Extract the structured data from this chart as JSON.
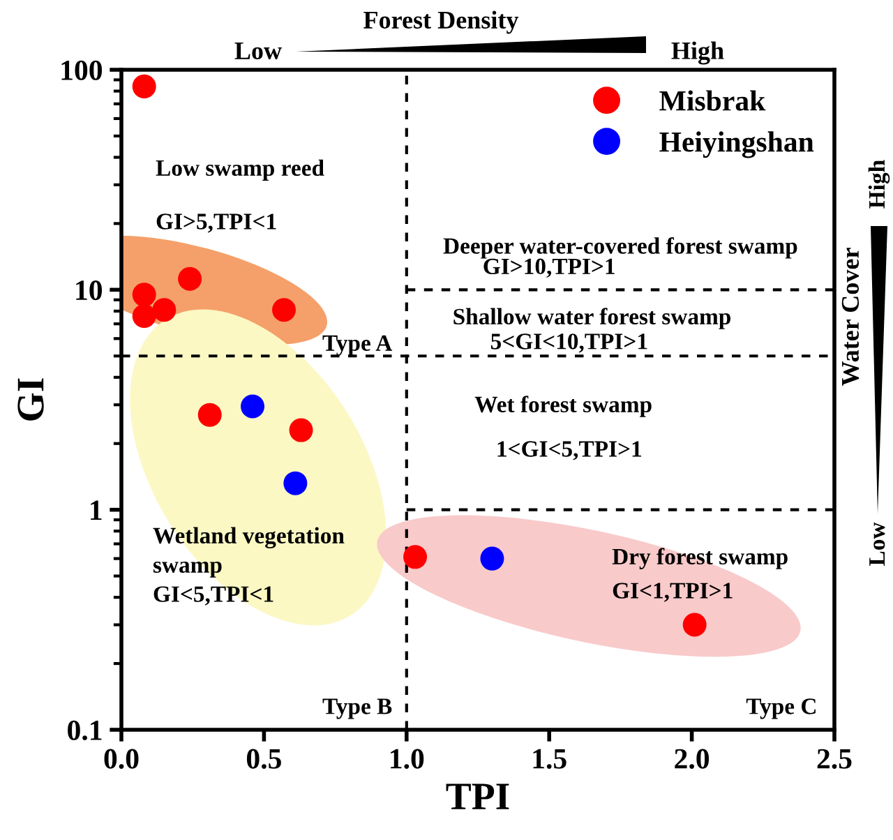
{
  "chart_data": {
    "type": "scatter",
    "xlabel": "TPI",
    "ylabel": "GI",
    "xlim": [
      0,
      2.5
    ],
    "ylim": [
      0.1,
      100
    ],
    "log": "y",
    "grid": false,
    "legend": "top right",
    "xticks": [
      {
        "value": 0,
        "label": "0.0"
      },
      {
        "value": 0.5,
        "label": "0.5"
      },
      {
        "value": 1,
        "label": "1.0"
      },
      {
        "value": 1.5,
        "label": "1.5"
      },
      {
        "value": 2,
        "label": "2.0"
      },
      {
        "value": 2.5,
        "label": "2.5"
      }
    ],
    "yticks": [
      0.1,
      1,
      10,
      100
    ],
    "series": [
      {
        "name": "Misbrak",
        "color": "#ff0000",
        "marker": "circle",
        "x": [
          0.08,
          0.08,
          0.08,
          0.15,
          0.24,
          0.57,
          0.31,
          0.63,
          1.03,
          2.01
        ],
        "values": [
          84,
          9.5,
          7.6,
          8.1,
          11.2,
          8.1,
          2.7,
          2.3,
          0.61,
          0.3
        ]
      },
      {
        "name": "Heiyingshan",
        "color": "#0000ff",
        "marker": "circle",
        "x": [
          0.46,
          0.61,
          1.3
        ],
        "values": [
          2.95,
          1.32,
          0.6
        ]
      },
      {
        "type": "line",
        "line_style": "dashed",
        "color": "#000000",
        "x": [
          1,
          2.5
        ],
        "values": [
          10,
          10
        ]
      },
      {
        "type": "line",
        "line_style": "dashed",
        "color": "#000000",
        "x": [
          1,
          2.5
        ],
        "values": [
          1,
          1
        ]
      }
    ],
    "ref_lines": [
      {
        "axis": "x",
        "value": 1,
        "color": "#000000",
        "line_style": "dashed"
      },
      {
        "axis": "y",
        "value": 5,
        "color": "#000000",
        "line_style": "dashed"
      }
    ],
    "annotations": [
      "Forest Density",
      "Low",
      "High",
      "Water Cover",
      "High",
      "Low",
      "Low swamp reed",
      "GI>5,TPI<1",
      "Deeper water-covered forest swamp",
      "GI>10,TPI>1",
      "Shallow water forest swamp",
      "5<GI<10,TPI>1",
      "Type A",
      "Wet forest swamp",
      "1<GI<5,TPI>1",
      "Wetland vegetation\nswamp\nGI<5,TPI<1",
      "Dry forest swamp",
      "GI<1,TPI>1",
      "Type B",
      "Type C"
    ]
  }
}
